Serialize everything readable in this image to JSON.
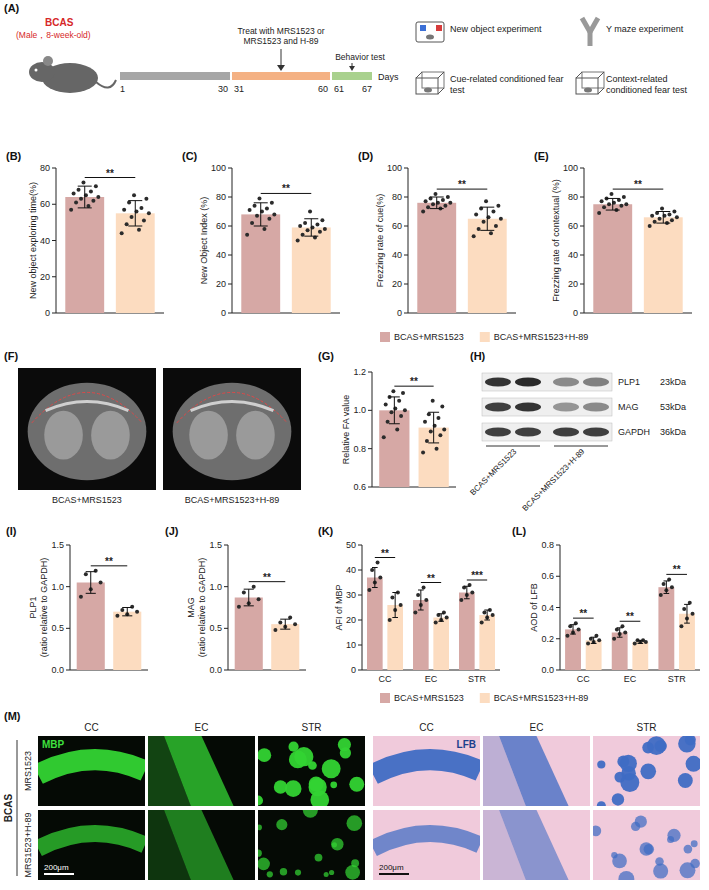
{
  "panel_letters": [
    "(A)",
    "(B)",
    "(C)",
    "(D)",
    "(E)",
    "(F)",
    "(G)",
    "(H)",
    "(I)",
    "(J)",
    "(K)",
    "(L)",
    "(M)"
  ],
  "schematic": {
    "model": "BCAS",
    "model_note": "(Male，8-week-old)",
    "treatment": "Treat with MRS1523 or MRS1523 and H-89",
    "behavior": "Behavior test",
    "days": [
      "1",
      "30",
      "31",
      "60",
      "61",
      "67"
    ],
    "days_label": "Days",
    "tests": [
      "New object experiment",
      "Y maze experiment",
      "Cue-related conditioned fear test",
      "Context-related conditioned fear test"
    ]
  },
  "chart_data": [
    {
      "type": "bar",
      "ylabel": "New object exploring time(%)",
      "categories": [
        null
      ],
      "ylim": [
        0,
        80
      ],
      "yticks": [
        0,
        20,
        40,
        60,
        80
      ],
      "annotations": [
        "**"
      ],
      "series": [
        {
          "name": "BCAS+MRS1523",
          "color": "#d6a8a5",
          "values": [
            64
          ],
          "errors": [
            6
          ],
          "points": [
            [
              57,
              59,
              61,
              62,
              63,
              64,
              65,
              66,
              67,
              68,
              70,
              72
            ]
          ]
        },
        {
          "name": "BCAS+MRS1523+H-89",
          "color": "#fcdcc0",
          "values": [
            55
          ],
          "errors": [
            7
          ],
          "points": [
            [
              44,
              46,
              49,
              51,
              53,
              55,
              56,
              57,
              58,
              61,
              63,
              65
            ]
          ]
        }
      ]
    },
    {
      "type": "bar",
      "ylabel": "New Object Index (%)",
      "categories": [
        null
      ],
      "ylim": [
        0,
        100
      ],
      "yticks": [
        0,
        20,
        40,
        60,
        80,
        100
      ],
      "annotations": [
        "**"
      ],
      "series": [
        {
          "name": "BCAS+MRS1523",
          "color": "#d6a8a5",
          "values": [
            68
          ],
          "errors": [
            8
          ],
          "points": [
            [
              54,
              58,
              62,
              65,
              67,
              68,
              70,
              71,
              72,
              74,
              76,
              79
            ]
          ]
        },
        {
          "name": "BCAS+MRS1523+H-89",
          "color": "#fcdcc0",
          "values": [
            59
          ],
          "errors": [
            6
          ],
          "points": [
            [
              50,
              52,
              54,
              56,
              57,
              58,
              59,
              60,
              61,
              62,
              64,
              70
            ]
          ]
        }
      ]
    },
    {
      "type": "bar",
      "ylabel": "Frezzing rate of cue(%)",
      "categories": [
        null
      ],
      "ylim": [
        0,
        100
      ],
      "yticks": [
        0,
        20,
        40,
        60,
        80,
        100
      ],
      "annotations": [
        "**"
      ],
      "series": [
        {
          "name": "BCAS+MRS1523",
          "color": "#d6a8a5",
          "values": [
            76
          ],
          "errors": [
            4
          ],
          "points": [
            [
              70,
              72,
              73,
              74,
              75,
              76,
              76,
              77,
              78,
              79,
              80,
              82
            ]
          ]
        },
        {
          "name": "BCAS+MRS1523+H-89",
          "color": "#fcdcc0",
          "values": [
            65
          ],
          "errors": [
            8
          ],
          "points": [
            [
              53,
              55,
              58,
              60,
              63,
              65,
              66,
              68,
              70,
              72,
              74,
              77
            ]
          ]
        }
      ]
    },
    {
      "type": "bar",
      "ylabel": "Frezzing rate of contextual (%)",
      "categories": [
        null
      ],
      "ylim": [
        0,
        100
      ],
      "yticks": [
        0,
        20,
        40,
        60,
        80,
        100
      ],
      "annotations": [
        "**"
      ],
      "legend": "bottom",
      "series": [
        {
          "name": "BCAS+MRS1523",
          "color": "#d6a8a5",
          "values": [
            75
          ],
          "errors": [
            4
          ],
          "points": [
            [
              69,
              71,
              73,
              74,
              75,
              75,
              76,
              77,
              78,
              79,
              80,
              82
            ]
          ]
        },
        {
          "name": "BCAS+MRS1523+H-89",
          "color": "#fcdcc0",
          "values": [
            66
          ],
          "errors": [
            4
          ],
          "points": [
            [
              60,
              62,
              63,
              64,
              65,
              66,
              67,
              67,
              68,
              69,
              70,
              72
            ]
          ]
        }
      ]
    },
    {
      "type": "bar",
      "ylabel": "Relative FA value",
      "categories": [
        null
      ],
      "ylim": [
        0.6,
        1.2
      ],
      "yticks": [
        0.6,
        0.8,
        {
          "value": 1,
          "label": "1.0"
        },
        1.2
      ],
      "annotations": [
        "**"
      ],
      "series": [
        {
          "name": "BCAS+MRS1523",
          "color": "#d6a8a5",
          "values": [
            1.0
          ],
          "errors": [
            0.07
          ],
          "points": [
            [
              0.86,
              0.9,
              0.94,
              0.97,
              0.99,
              1.0,
              1.01,
              1.03,
              1.05,
              1.07,
              1.09,
              1.1
            ]
          ]
        },
        {
          "name": "BCAS+MRS1523+H-89",
          "color": "#fcdcc0",
          "values": [
            0.91
          ],
          "errors": [
            0.08
          ],
          "points": [
            [
              0.78,
              0.8,
              0.84,
              0.87,
              0.89,
              0.9,
              0.92,
              0.94,
              0.96,
              0.98,
              1.02,
              1.05
            ]
          ]
        }
      ]
    },
    {
      "type": "bar",
      "ylabel": "PLP1\n(ratio relative to GAPDH)",
      "categories": [
        null
      ],
      "ylim": [
        0,
        1.5
      ],
      "yticks": [
        {
          "value": 0,
          "label": "0.0"
        },
        0.5,
        {
          "value": 1,
          "label": "1.0"
        },
        1.5
      ],
      "annotations": [
        "**"
      ],
      "series": [
        {
          "name": "BCAS+MRS1523",
          "color": "#d6a8a5",
          "values": [
            1.05
          ],
          "errors": [
            0.13
          ],
          "points": [
            [
              0.88,
              0.97,
              1.05,
              1.15,
              1.19
            ]
          ]
        },
        {
          "name": "BCAS+MRS1523+H-89",
          "color": "#fcdcc0",
          "values": [
            0.7
          ],
          "errors": [
            0.05
          ],
          "points": [
            [
              0.65,
              0.67,
              0.7,
              0.72,
              0.76
            ]
          ]
        }
      ]
    },
    {
      "type": "bar",
      "ylabel": "MAG\n(ratio relative to GAPDH)",
      "categories": [
        null
      ],
      "ylim": [
        0,
        1.5
      ],
      "yticks": [
        {
          "value": 0,
          "label": "0.0"
        },
        0.5,
        {
          "value": 1,
          "label": "1.0"
        },
        1.5
      ],
      "annotations": [
        "**"
      ],
      "series": [
        {
          "name": "BCAS+MRS1523",
          "color": "#d6a8a5",
          "values": [
            0.87
          ],
          "errors": [
            0.1
          ],
          "points": [
            [
              0.76,
              0.8,
              0.85,
              0.93,
              1.0
            ]
          ]
        },
        {
          "name": "BCAS+MRS1523+H-89",
          "color": "#fcdcc0",
          "values": [
            0.55
          ],
          "errors": [
            0.06
          ],
          "points": [
            [
              0.48,
              0.52,
              0.55,
              0.57,
              0.63
            ]
          ]
        }
      ]
    },
    {
      "type": "bar",
      "ylabel": "AFI of MBP",
      "categories": [
        "CC",
        "EC",
        "STR"
      ],
      "ylim": [
        0,
        50
      ],
      "yticks": [
        0,
        10,
        20,
        30,
        40,
        50
      ],
      "annotations": [
        "**",
        "**",
        "***"
      ],
      "series": [
        {
          "name": "BCAS+MRS1523",
          "color": "#d6a8a5",
          "values": [
            37,
            28,
            31
          ],
          "errors": [
            4,
            4,
            2.5
          ],
          "points": [
            [
              32,
              35,
              37,
              40,
              43
            ],
            [
              23,
              26,
              28,
              30,
              33
            ],
            [
              28,
              30,
              31,
              33,
              34
            ]
          ]
        },
        {
          "name": "BCAS+MRS1523+H-89",
          "color": "#fcdcc0",
          "values": [
            26,
            21,
            22
          ],
          "errors": [
            5,
            1.5,
            2
          ],
          "points": [
            [
              20,
              24,
              26,
              29,
              31
            ],
            [
              19,
              20,
              21,
              22,
              23
            ],
            [
              19,
              21,
              22,
              23,
              24
            ]
          ]
        }
      ]
    },
    {
      "type": "bar",
      "ylabel": "AOD of LFB",
      "categories": [
        "CC",
        "EC",
        "STR"
      ],
      "ylim": [
        0,
        0.8
      ],
      "yticks": [
        {
          "value": 0,
          "label": "0.0"
        },
        0.2,
        0.4,
        0.6,
        0.8
      ],
      "annotations": [
        "**",
        "**",
        "**"
      ],
      "legend": "bottom",
      "series": [
        {
          "name": "BCAS+MRS1523",
          "color": "#d6a8a5",
          "values": [
            0.26,
            0.24,
            0.53
          ],
          "errors": [
            0.03,
            0.03,
            0.04
          ],
          "points": [
            [
              0.22,
              0.24,
              0.26,
              0.28,
              0.3
            ],
            [
              0.2,
              0.23,
              0.24,
              0.26,
              0.28
            ],
            [
              0.48,
              0.51,
              0.53,
              0.55,
              0.58
            ]
          ]
        },
        {
          "name": "BCAS+MRS1523+H-89",
          "color": "#fcdcc0",
          "values": [
            0.19,
            0.18,
            0.36
          ],
          "errors": [
            0.02,
            0.01,
            0.06
          ],
          "points": [
            [
              0.17,
              0.18,
              0.19,
              0.2,
              0.22
            ],
            [
              0.17,
              0.18,
              0.18,
              0.19,
              0.19
            ],
            [
              0.28,
              0.33,
              0.36,
              0.39,
              0.43
            ]
          ]
        }
      ]
    }
  ],
  "mri": {
    "labels": [
      "BCAS+MRS1523",
      "BCAS+MRS1523+H-89"
    ]
  },
  "blot": {
    "bands": [
      {
        "protein": "PLP1",
        "size": "23kDa"
      },
      {
        "protein": "MAG",
        "size": "53kDa"
      },
      {
        "protein": "GAPDH",
        "size": "36kDa"
      }
    ],
    "lanes": [
      "BCAS+MRS1523",
      "BCAS+MRS1523+H-89"
    ]
  },
  "histology": {
    "model": "BCAS",
    "groups": [
      "MRS1523",
      "MRS1523+H-89"
    ],
    "stains": [
      "MBP",
      "LFB"
    ],
    "regions": [
      "CC",
      "EC",
      "STR"
    ],
    "scale_bar": "200μm"
  }
}
